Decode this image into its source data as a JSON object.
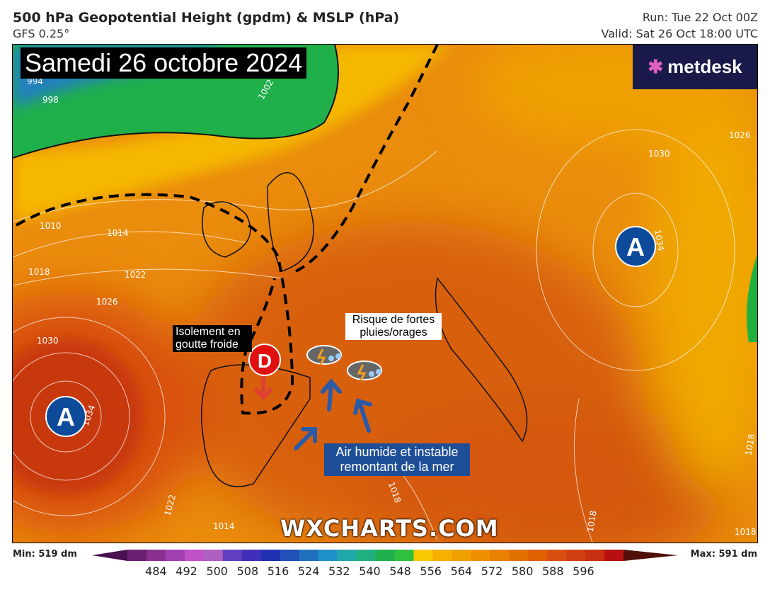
{
  "header": {
    "title": "500 hPa Geopotential Height (gpdm) & MSLP (hPa)",
    "model": "GFS 0.25°",
    "run": "Run: Tue 22 Oct 00Z",
    "valid": "Valid: Sat 26 Oct 18:00 UTC"
  },
  "map": {
    "date_banner": "Samedi 26 octobre 2024",
    "logo": "metdesk",
    "watermark": "WXCHARTS.COM",
    "isobar_labels": [
      "994",
      "998",
      "1002",
      "1010",
      "1014",
      "1018",
      "1022",
      "1026",
      "1030",
      "1034",
      "1026",
      "1030",
      "1034",
      "1018",
      "1018",
      "1018",
      "1018",
      "1022",
      "1014"
    ],
    "pressure_centers": [
      {
        "label": "A",
        "type": "high"
      },
      {
        "label": "A",
        "type": "high"
      },
      {
        "label": "D",
        "type": "low"
      }
    ],
    "annotations": {
      "cut_off_low": "Isolement en goutte froide",
      "rain_risk": "Risque de fortes pluies/orages",
      "moist_air": "Air humide et instable remontant de la mer"
    },
    "icons": [
      "thunderstorm-rain-icon",
      "thunderstorm-rain-icon"
    ],
    "colors": {
      "high": "#0d4a9a",
      "low": "#e01010",
      "arrow_blue": "#2a5aa8",
      "arrow_red": "#e04030"
    }
  },
  "colorbar": {
    "min": "Min: 519 dm",
    "max": "Max: 591 dm",
    "ticks": [
      "484",
      "492",
      "500",
      "508",
      "516",
      "524",
      "532",
      "540",
      "548",
      "556",
      "564",
      "572",
      "580",
      "588",
      "596"
    ],
    "colors": [
      "#4a1050",
      "#6a2070",
      "#8a3090",
      "#a040b0",
      "#c050c8",
      "#b060c0",
      "#6040c0",
      "#4030b8",
      "#2030b0",
      "#2050b8",
      "#2070c0",
      "#2090c8",
      "#20a8a8",
      "#20b080",
      "#20b050",
      "#30c040",
      "#f8c800",
      "#f8b000",
      "#f0a000",
      "#f09000",
      "#e88000",
      "#e07000",
      "#e06000",
      "#d85010",
      "#d04010",
      "#c83010",
      "#b81010",
      "#501008"
    ]
  }
}
